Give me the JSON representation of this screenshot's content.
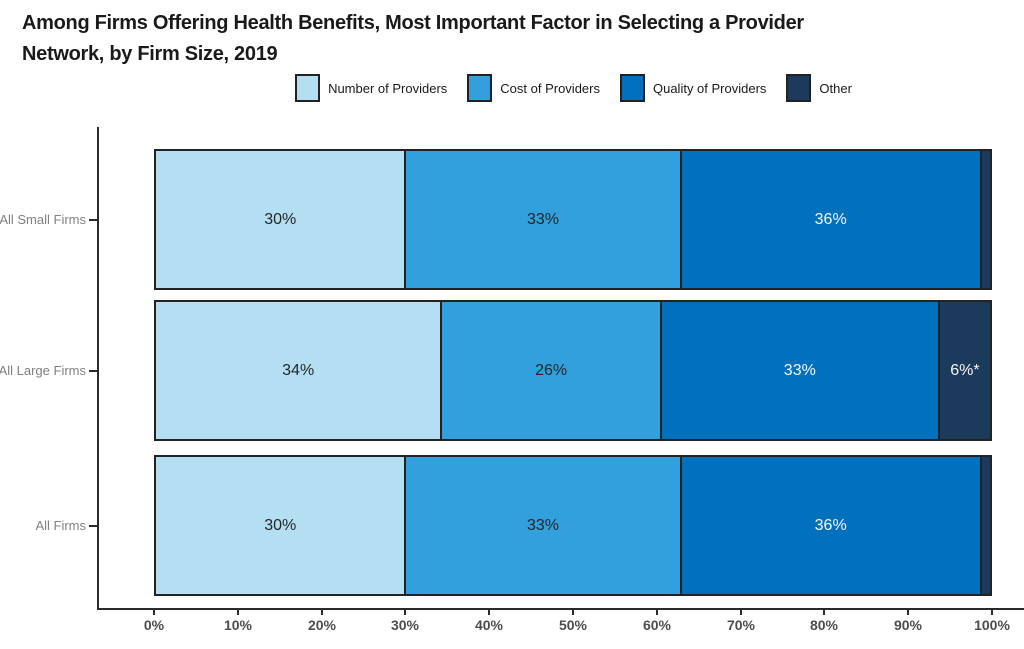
{
  "title": {
    "line1": "Among Firms Offering Health Benefits, Most Important Factor in Selecting a Provider",
    "line2": "Network, by Firm Size, 2019"
  },
  "colors": {
    "number_of_providers": "#b4def2",
    "cost_of_providers": "#31a0dd",
    "quality_of_providers": "#0271bd",
    "other": "#1b3a5c",
    "bar_border": "#222222",
    "axis": "#2b2b2b",
    "dark_label_text": "#262626",
    "light_label_text": "#f7f7f7",
    "category_label_text": "#808080",
    "tick_label_text": "#4d4d4d"
  },
  "chart_data": {
    "type": "bar",
    "orientation": "horizontal-stacked",
    "title": "Among Firms Offering Health Benefits, Most Important Factor in Selecting a Provider Network, by Firm Size, 2019",
    "categories": [
      "All Small Firms",
      "All Large Firms",
      "All Firms"
    ],
    "series": [
      {
        "name": "Number of Providers",
        "color": "#b4def2",
        "label_color": "#262626",
        "values": [
          30,
          34,
          30
        ],
        "labels": [
          "30%",
          "34%",
          "30%"
        ]
      },
      {
        "name": "Cost of Providers",
        "color": "#31a0dd",
        "label_color": "#262626",
        "values": [
          33,
          26,
          33
        ],
        "labels": [
          "33%",
          "26%",
          "33%"
        ]
      },
      {
        "name": "Quality of Providers",
        "color": "#0271bd",
        "label_color": "#f7f7f7",
        "values": [
          36,
          33,
          36
        ],
        "labels": [
          "36%",
          "33%",
          "36%"
        ]
      },
      {
        "name": "Other",
        "color": "#1b3a5c",
        "label_color": "#f7f7f7",
        "values": [
          1,
          6,
          1
        ],
        "labels": [
          "",
          "6%*",
          ""
        ]
      }
    ],
    "x_ticks": [
      "0%",
      "10%",
      "20%",
      "30%",
      "40%",
      "50%",
      "60%",
      "70%",
      "80%",
      "90%",
      "100%"
    ],
    "xlim": [
      0,
      100
    ],
    "grid": false,
    "legend_position": "top"
  }
}
